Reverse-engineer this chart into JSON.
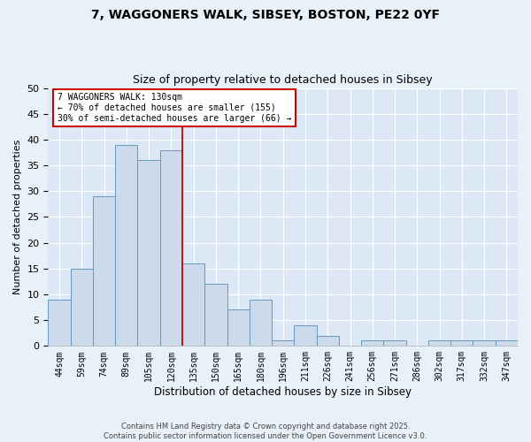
{
  "title_line1": "7, WAGGONERS WALK, SIBSEY, BOSTON, PE22 0YF",
  "title_line2": "Size of property relative to detached houses in Sibsey",
  "xlabel": "Distribution of detached houses by size in Sibsey",
  "ylabel": "Number of detached properties",
  "bins": [
    "44sqm",
    "59sqm",
    "74sqm",
    "89sqm",
    "105sqm",
    "120sqm",
    "135sqm",
    "150sqm",
    "165sqm",
    "180sqm",
    "196sqm",
    "211sqm",
    "226sqm",
    "241sqm",
    "256sqm",
    "271sqm",
    "286sqm",
    "302sqm",
    "317sqm",
    "332sqm",
    "347sqm"
  ],
  "values": [
    9,
    15,
    29,
    39,
    36,
    38,
    16,
    12,
    7,
    9,
    1,
    4,
    2,
    0,
    1,
    1,
    0,
    1,
    1,
    1,
    1
  ],
  "bar_color": "#ccdaeb",
  "bar_edge_color": "#6699bb",
  "bar_edge_width": 0.7,
  "vline_color": "#cc0000",
  "vline_lw": 1.3,
  "vline_index": 5.5,
  "annotation_text": "7 WAGGONERS WALK: 130sqm\n← 70% of detached houses are smaller (155)\n30% of semi-detached houses are larger (66) →",
  "annotation_box_color": "#ffffff",
  "annotation_box_edge": "#cc0000",
  "ylim": [
    0,
    50
  ],
  "yticks": [
    0,
    5,
    10,
    15,
    20,
    25,
    30,
    35,
    40,
    45,
    50
  ],
  "background_color": "#dce8f5",
  "grid_color": "#ffffff",
  "fig_bg_color": "#e8f0f8",
  "title_fontsize": 10,
  "subtitle_fontsize": 9,
  "footer_line1": "Contains HM Land Registry data © Crown copyright and database right 2025.",
  "footer_line2": "Contains public sector information licensed under the Open Government Licence v3.0."
}
